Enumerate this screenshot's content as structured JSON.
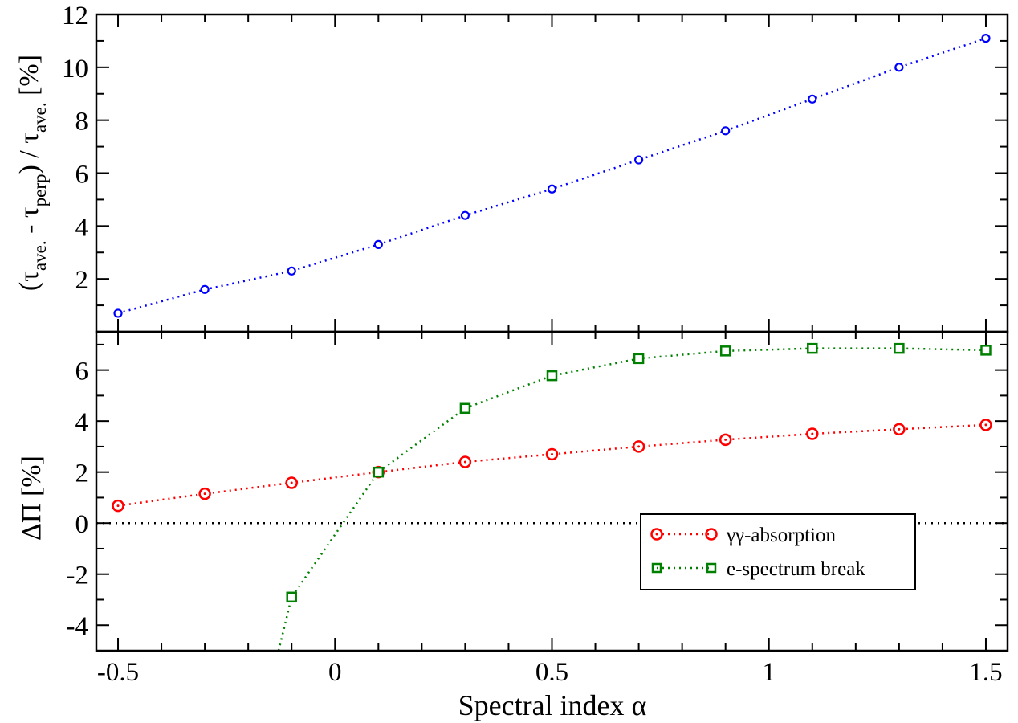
{
  "chart_data": [
    {
      "type": "line",
      "panel": "top",
      "ylabel": "(τ_ave. - τ_perp) / τ_ave. [%]",
      "ylabel_parts": {
        "open": "(τ",
        "sub1": "ave.",
        "mid": " - τ",
        "sub2": "perp",
        "close": ") / τ",
        "sub3": "ave.",
        "end": " [%]"
      },
      "xlim": [
        -0.55,
        1.55
      ],
      "ylim": [
        0,
        12
      ],
      "yticks": [
        2,
        4,
        6,
        8,
        10,
        12
      ],
      "series": [
        {
          "color": "#0000ff",
          "marker": "circle",
          "linestyle": "dotted",
          "x": [
            -0.5,
            -0.3,
            -0.1,
            0.1,
            0.3,
            0.5,
            0.7,
            0.9,
            1.1,
            1.3,
            1.5
          ],
          "y": [
            0.7,
            1.6,
            2.3,
            3.3,
            4.4,
            5.4,
            6.5,
            7.6,
            8.8,
            10.0,
            11.1
          ]
        }
      ]
    },
    {
      "type": "line",
      "panel": "bottom",
      "xlabel": "Spectral index α",
      "ylabel": "ΔΠ [%]",
      "xlim": [
        -0.55,
        1.55
      ],
      "ylim": [
        -5,
        7.5
      ],
      "xticks": [
        -0.5,
        0,
        0.5,
        1,
        1.5
      ],
      "xticklabels": [
        "-0.5",
        "0",
        "0.5",
        "1",
        "1.5"
      ],
      "yticks": [
        -4,
        -2,
        0,
        2,
        4,
        6
      ],
      "reference_line": {
        "y": 0,
        "color": "#000000",
        "linestyle": "dotted"
      },
      "legend_position": "lower-right",
      "series": [
        {
          "name": "γγ-absorption",
          "color": "#ff0000",
          "marker": "circle-dot",
          "linestyle": "dotted",
          "x": [
            -0.5,
            -0.3,
            -0.1,
            0.1,
            0.3,
            0.5,
            0.7,
            0.9,
            1.1,
            1.3,
            1.5
          ],
          "y": [
            0.68,
            1.15,
            1.58,
            2.0,
            2.4,
            2.7,
            3.0,
            3.27,
            3.5,
            3.68,
            3.85
          ]
        },
        {
          "name": "e-spectrum break",
          "color": "#008000",
          "marker": "square",
          "linestyle": "dotted",
          "x": [
            -0.13,
            -0.1,
            0.1,
            0.3,
            0.5,
            0.7,
            0.9,
            1.1,
            1.3,
            1.5
          ],
          "y": [
            -5.0,
            -2.9,
            2.0,
            4.5,
            5.78,
            6.45,
            6.75,
            6.85,
            6.85,
            6.78
          ],
          "marked": [
            false,
            true,
            true,
            true,
            true,
            true,
            true,
            true,
            true,
            true
          ]
        }
      ]
    }
  ]
}
